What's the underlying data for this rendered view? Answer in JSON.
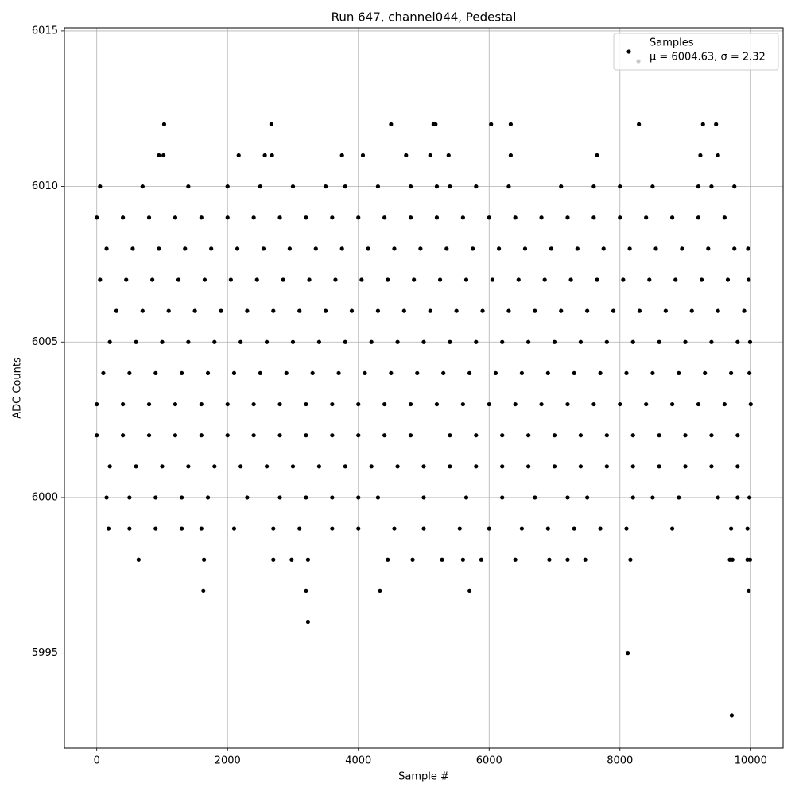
{
  "chart_data": {
    "type": "scatter",
    "title": "Run 647, channel044, Pedestal",
    "xlabel": "Sample #",
    "ylabel": "ADC Counts",
    "xlim": [
      -495,
      10495
    ],
    "ylim": [
      5991.95,
      6015.1
    ],
    "xticks": [
      0,
      2000,
      4000,
      6000,
      8000,
      10000
    ],
    "yticks": [
      5995,
      6000,
      6005,
      6010,
      6015
    ],
    "grid": true,
    "legend": "upper right",
    "annotation": "μ = 6004.63, σ = 2.32",
    "annotation_color": "#c8c8c8",
    "x": [
      1030,
      2670,
      4500,
      5150,
      5180,
      6030,
      6330,
      8290,
      9270,
      9470,
      950,
      1020,
      2170,
      2570,
      2680,
      3750,
      4070,
      4730,
      5100,
      5380,
      6330,
      7650,
      9230,
      9500,
      3230,
      3200,
      1630,
      4330,
      5700,
      9970,
      8120,
      9710,
      640,
      1640,
      2700,
      2980,
      3230,
      4450,
      4830,
      5280,
      5600,
      5880,
      6400,
      6920,
      7200,
      7470,
      8160,
      9680,
      9720,
      9950,
      9990,
      50,
      700,
      1400,
      2000,
      2500,
      3000,
      3500,
      3800,
      4300,
      4800,
      5200,
      5400,
      5800,
      6300,
      7100,
      7600,
      8000,
      8500,
      9200,
      9400,
      9750,
      150,
      500,
      900,
      1300,
      1700,
      2300,
      2800,
      3200,
      3600,
      4000,
      4300,
      5000,
      5650,
      6200,
      6700,
      7200,
      7500,
      8200,
      8500,
      8900,
      9500,
      9800,
      9980,
      180,
      500,
      900,
      1300,
      1600,
      2100,
      2700,
      3100,
      3600,
      4000,
      4550,
      5000,
      5550,
      6000,
      6500,
      6900,
      7300,
      7700,
      8100,
      8800,
      9700,
      9950,
      0,
      400,
      800,
      1200,
      1600,
      2000,
      2400,
      2800,
      3200,
      3600,
      4000,
      4400,
      4800,
      5200,
      5600,
      6000,
      6400,
      6800,
      7200,
      7600,
      8000,
      8400,
      8800,
      9200,
      9600,
      0,
      400,
      800,
      1200,
      1600,
      2000,
      2400,
      2800,
      3200,
      3600,
      4000,
      4400,
      4800,
      5400,
      5800,
      6200,
      6600,
      7000,
      7400,
      7800,
      8200,
      8600,
      9000,
      9400,
      9800,
      200,
      600,
      1000,
      1400,
      1800,
      2200,
      2600,
      3000,
      3400,
      3800,
      4200,
      4600,
      5000,
      5400,
      5800,
      6200,
      6600,
      7000,
      7400,
      7800,
      8200,
      8600,
      9000,
      9400,
      9800,
      0,
      400,
      800,
      1200,
      1600,
      2000,
      2400,
      2800,
      3200,
      3600,
      4000,
      4400,
      4800,
      5200,
      5600,
      6000,
      6400,
      6800,
      7200,
      7600,
      8000,
      8400,
      8800,
      9200,
      9600,
      10000,
      100,
      500,
      900,
      1300,
      1700,
      2100,
      2500,
      2900,
      3300,
      3700,
      4100,
      4500,
      4900,
      5300,
      5700,
      6100,
      6500,
      6900,
      7300,
      7700,
      8100,
      8500,
      8900,
      9300,
      9700,
      9980,
      200,
      600,
      1000,
      1400,
      1800,
      2200,
      2600,
      3000,
      3400,
      3800,
      4200,
      4600,
      5000,
      5400,
      5800,
      6200,
      6600,
      7000,
      7400,
      7800,
      8200,
      8600,
      9000,
      9400,
      9800,
      9990,
      300,
      700,
      1100,
      1500,
      1900,
      2300,
      2700,
      3100,
      3500,
      3900,
      4300,
      4700,
      5100,
      5500,
      5900,
      6300,
      6700,
      7100,
      7500,
      7900,
      8300,
      8700,
      9100,
      9500,
      9900,
      50,
      450,
      850,
      1250,
      1650,
      2050,
      2450,
      2850,
      3250,
      3650,
      4050,
      4450,
      4850,
      5250,
      5650,
      6050,
      6450,
      6850,
      7250,
      7650,
      8050,
      8450,
      8850,
      9250,
      9650,
      9970,
      150,
      550,
      950,
      1350,
      1750,
      2150,
      2550,
      2950,
      3350,
      3750,
      4150,
      4550,
      4950,
      5350,
      5750,
      6150,
      6550,
      6950,
      7350,
      7750,
      8150,
      8550,
      8950,
      9350,
      9750,
      9960
    ],
    "series": [
      {
        "name": "Samples",
        "color": "#000000",
        "values": [
          6012,
          6012,
          6012,
          6012,
          6012,
          6012,
          6012,
          6012,
          6012,
          6012,
          6011,
          6011,
          6011,
          6011,
          6011,
          6011,
          6011,
          6011,
          6011,
          6011,
          6011,
          6011,
          6011,
          6011,
          5996,
          5997,
          5997,
          5997,
          5997,
          5997,
          5995,
          5993,
          5998,
          5998,
          5998,
          5998,
          5998,
          5998,
          5998,
          5998,
          5998,
          5998,
          5998,
          5998,
          5998,
          5998,
          5998,
          5998,
          5998,
          5998,
          5998,
          6010,
          6010,
          6010,
          6010,
          6010,
          6010,
          6010,
          6010,
          6010,
          6010,
          6010,
          6010,
          6010,
          6010,
          6010,
          6010,
          6010,
          6010,
          6010,
          6010,
          6010,
          6000,
          6000,
          6000,
          6000,
          6000,
          6000,
          6000,
          6000,
          6000,
          6000,
          6000,
          6000,
          6000,
          6000,
          6000,
          6000,
          6000,
          6000,
          6000,
          6000,
          6000,
          6000,
          6000,
          5999,
          5999,
          5999,
          5999,
          5999,
          5999,
          5999,
          5999,
          5999,
          5999,
          5999,
          5999,
          5999,
          5999,
          5999,
          5999,
          5999,
          5999,
          5999,
          5999,
          5999,
          5999,
          6009,
          6009,
          6009,
          6009,
          6009,
          6009,
          6009,
          6009,
          6009,
          6009,
          6009,
          6009,
          6009,
          6009,
          6009,
          6009,
          6009,
          6009,
          6009,
          6009,
          6009,
          6009,
          6009,
          6009,
          6009,
          6002,
          6002,
          6002,
          6002,
          6002,
          6002,
          6002,
          6002,
          6002,
          6002,
          6002,
          6002,
          6002,
          6002,
          6002,
          6002,
          6002,
          6002,
          6002,
          6002,
          6002,
          6002,
          6002,
          6002,
          6002,
          6001,
          6001,
          6001,
          6001,
          6001,
          6001,
          6001,
          6001,
          6001,
          6001,
          6001,
          6001,
          6001,
          6001,
          6001,
          6001,
          6001,
          6001,
          6001,
          6001,
          6001,
          6001,
          6001,
          6001,
          6001,
          6003,
          6003,
          6003,
          6003,
          6003,
          6003,
          6003,
          6003,
          6003,
          6003,
          6003,
          6003,
          6003,
          6003,
          6003,
          6003,
          6003,
          6003,
          6003,
          6003,
          6003,
          6003,
          6003,
          6003,
          6003,
          6003,
          6004,
          6004,
          6004,
          6004,
          6004,
          6004,
          6004,
          6004,
          6004,
          6004,
          6004,
          6004,
          6004,
          6004,
          6004,
          6004,
          6004,
          6004,
          6004,
          6004,
          6004,
          6004,
          6004,
          6004,
          6004,
          6004,
          6005,
          6005,
          6005,
          6005,
          6005,
          6005,
          6005,
          6005,
          6005,
          6005,
          6005,
          6005,
          6005,
          6005,
          6005,
          6005,
          6005,
          6005,
          6005,
          6005,
          6005,
          6005,
          6005,
          6005,
          6005,
          6005,
          6006,
          6006,
          6006,
          6006,
          6006,
          6006,
          6006,
          6006,
          6006,
          6006,
          6006,
          6006,
          6006,
          6006,
          6006,
          6006,
          6006,
          6006,
          6006,
          6006,
          6006,
          6006,
          6006,
          6006,
          6006,
          6007,
          6007,
          6007,
          6007,
          6007,
          6007,
          6007,
          6007,
          6007,
          6007,
          6007,
          6007,
          6007,
          6007,
          6007,
          6007,
          6007,
          6007,
          6007,
          6007,
          6007,
          6007,
          6007,
          6007,
          6007,
          6007,
          6008,
          6008,
          6008,
          6008,
          6008,
          6008,
          6008,
          6008,
          6008,
          6008,
          6008,
          6008,
          6008,
          6008,
          6008,
          6008,
          6008,
          6008,
          6008,
          6008,
          6008,
          6008,
          6008,
          6008,
          6008,
          6008
        ]
      }
    ]
  }
}
